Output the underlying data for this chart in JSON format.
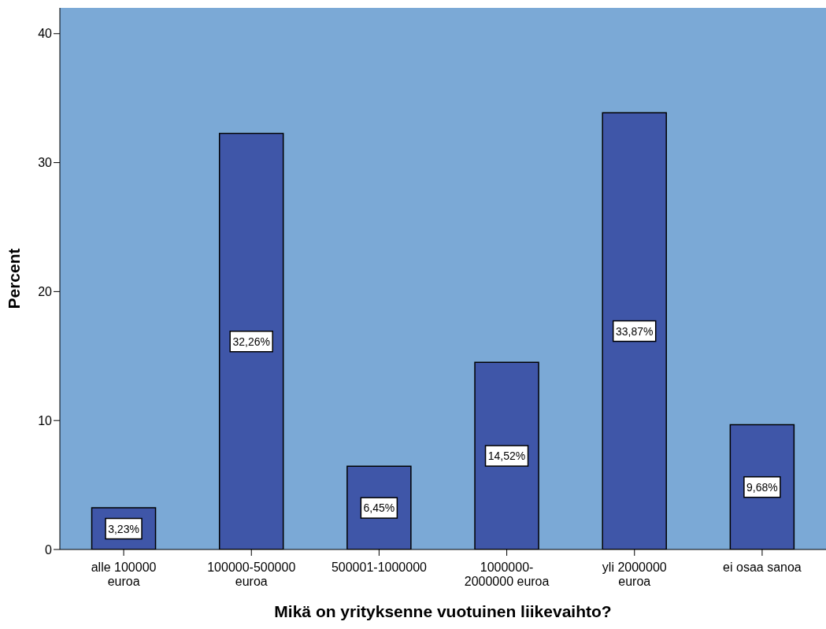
{
  "chart_data": {
    "type": "bar",
    "xlabel": "Mikä on yrityksenne vuotuinen liikevaihto?",
    "ylabel": "Percent",
    "categories": [
      "alle 100000 euroa",
      "100000-500000 euroa",
      "500001-1000000",
      "1000000-2000000 euroa",
      "yli 2000000 euroa",
      "ei osaa sanoa"
    ],
    "values": [
      3.23,
      32.26,
      6.45,
      14.52,
      33.87,
      9.68
    ],
    "value_labels": [
      "3,23%",
      "32,26%",
      "6,45%",
      "14,52%",
      "33,87%",
      "9,68%"
    ],
    "color": "#3f56a8",
    "ylim": [
      0,
      42
    ],
    "yticks": [
      0,
      10,
      20,
      30,
      40
    ],
    "grid": false,
    "legend": false
  }
}
